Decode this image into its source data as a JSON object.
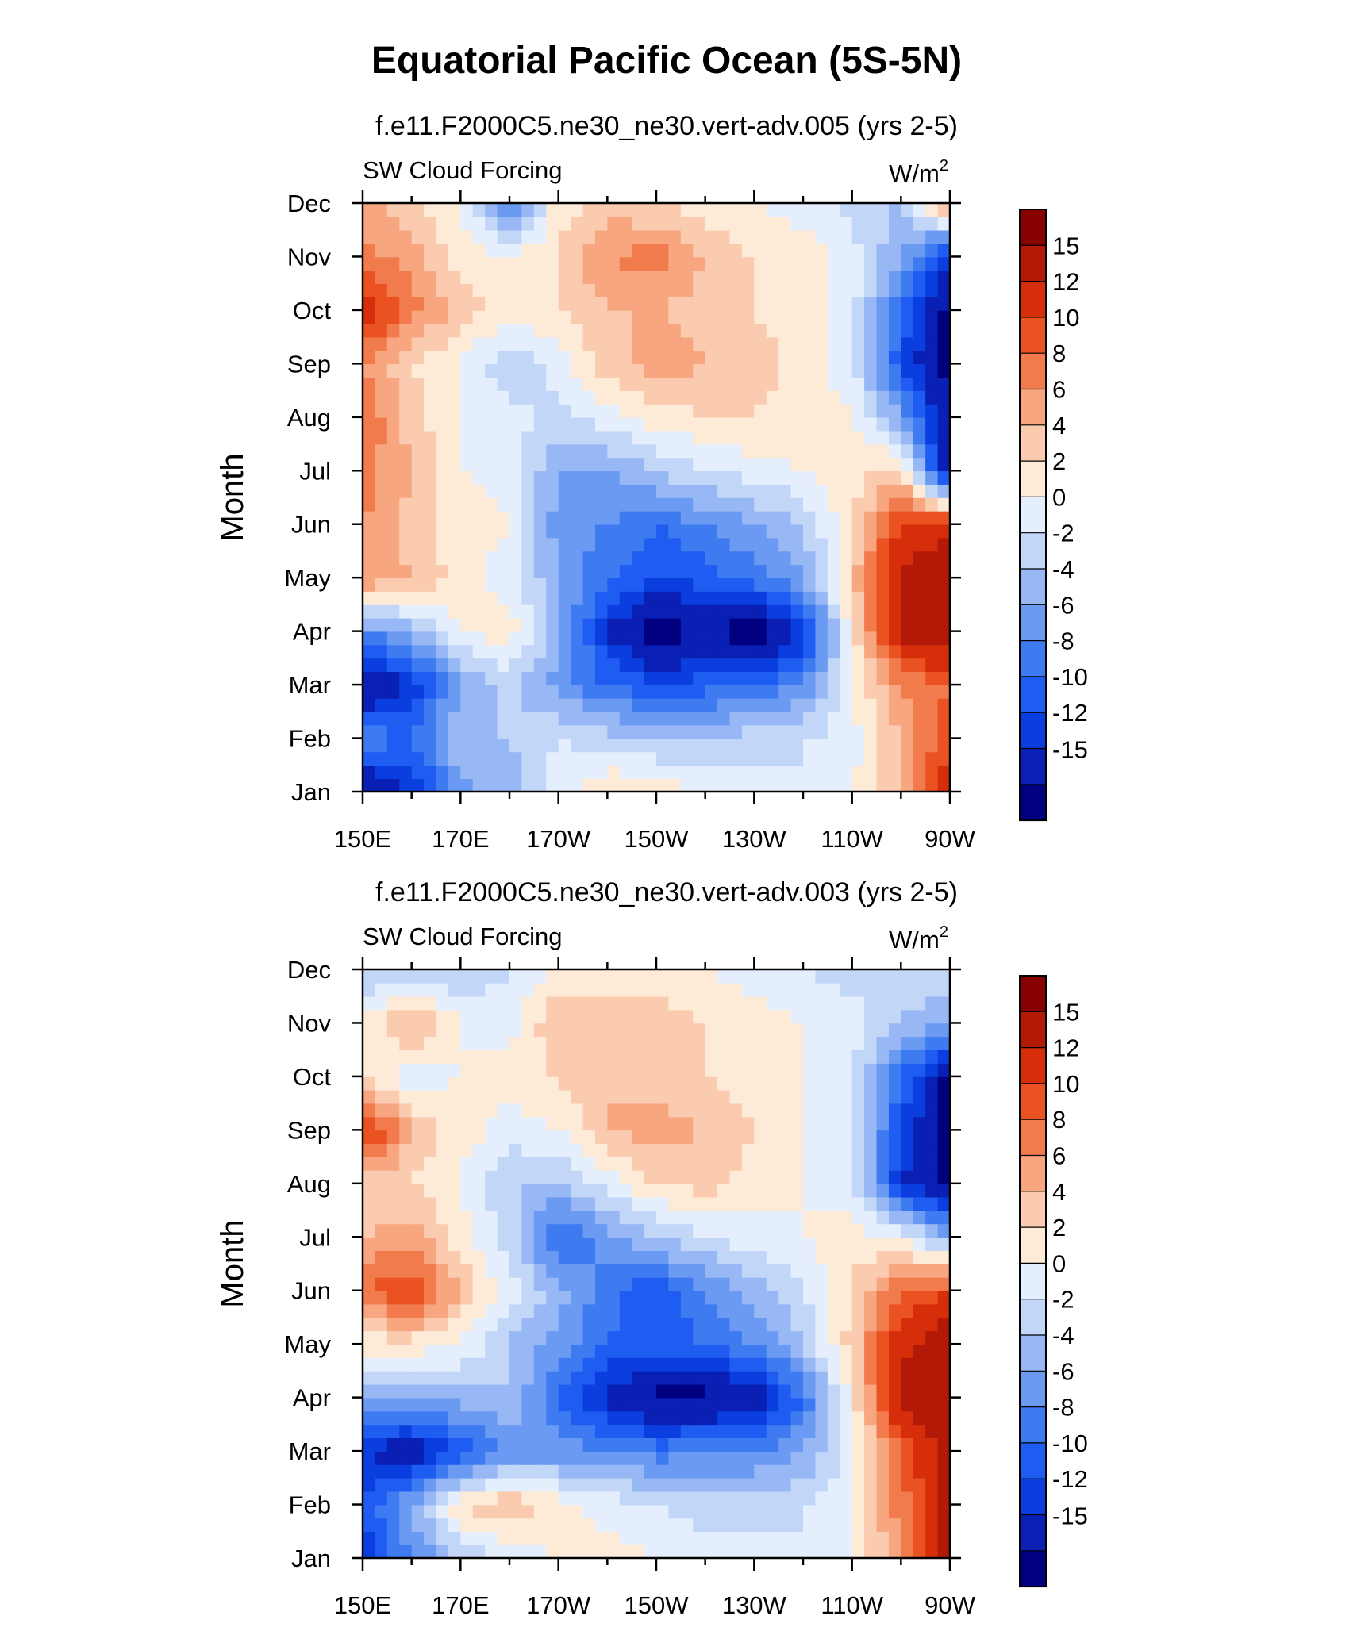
{
  "figure": {
    "title": "Equatorial Pacific Ocean (5S-5N)"
  },
  "palette": [
    "#000080",
    "#0a1fb4",
    "#0b3ede",
    "#1f5cf2",
    "#3f7bf0",
    "#6a9af2",
    "#98b8f5",
    "#c2d6f8",
    "#e4eefc",
    "#fdebd8",
    "#fbcbb0",
    "#f8a67f",
    "#f27b4e",
    "#ea5321",
    "#d62e0b",
    "#b21906",
    "#890000"
  ],
  "chart_data": [
    {
      "type": "heatmap",
      "title": "f.e11.F2000C5.ne30_ne30.vert-adv.005 (yrs 2-5)",
      "left_label": "SW Cloud Forcing",
      "units_base": "W/m",
      "units_exp": "2",
      "ylabel": "Month",
      "xlabel": "",
      "x_ticks": [
        "150E",
        "170E",
        "170W",
        "150W",
        "130W",
        "110W",
        "90W"
      ],
      "y_ticks": [
        "Jan",
        "Feb",
        "Mar",
        "Apr",
        "May",
        "Jun",
        "Jul",
        "Aug",
        "Sep",
        "Oct",
        "Nov",
        "Dec"
      ],
      "colorbar_labels": [
        "15",
        "12",
        "10",
        "8",
        "6",
        "4",
        "2",
        "0",
        "-2",
        "-4",
        "-6",
        "-8",
        "-10",
        "-12",
        "-15"
      ],
      "x_range_lon": [
        150,
        270
      ],
      "y_range_month": [
        1,
        12
      ],
      "x_grid_lon": [
        150,
        160,
        170,
        180,
        190,
        200,
        210,
        220,
        230,
        240,
        250,
        260,
        270
      ],
      "values": [
        [
          -16,
          -12,
          -5,
          -3,
          1,
          4,
          3,
          2,
          1,
          0,
          2,
          6,
          14
        ],
        [
          -6,
          -8,
          -2,
          -2,
          0,
          -1,
          -2,
          -2,
          -1,
          0,
          1,
          6,
          12
        ],
        [
          -16,
          -12,
          -4,
          -1,
          -5,
          -8,
          -10,
          -9,
          -8,
          -6,
          2,
          8,
          10
        ],
        [
          -6,
          -3,
          2,
          3,
          -3,
          -12,
          -17,
          -15,
          -17,
          -12,
          3,
          16,
          18
        ],
        [
          8,
          6,
          3,
          1,
          -4,
          -8,
          -10,
          -9,
          -7,
          -4,
          5,
          16,
          18
        ],
        [
          8,
          5,
          3,
          2,
          -5,
          -6,
          -8,
          -6,
          -4,
          -2,
          4,
          12,
          14
        ],
        [
          9,
          6,
          2,
          1,
          -4,
          -4,
          -2,
          0,
          1,
          2,
          3,
          5,
          -16
        ],
        [
          10,
          5,
          2,
          1,
          -1,
          1,
          3,
          4,
          4,
          3,
          2,
          -4,
          -16
        ],
        [
          8,
          4,
          2,
          -2,
          1,
          5,
          7,
          6,
          5,
          3,
          1,
          -10,
          -16
        ],
        [
          14,
          9,
          5,
          3,
          4,
          6,
          6,
          5,
          4,
          3,
          1,
          -8,
          -16
        ],
        [
          9,
          7,
          3,
          2,
          4,
          8,
          9,
          6,
          4,
          3,
          1,
          -4,
          -12
        ],
        [
          7,
          4,
          2,
          -7,
          3,
          5,
          4,
          3,
          2,
          1,
          -1,
          -2,
          8
        ]
      ]
    },
    {
      "type": "heatmap",
      "title": "f.e11.F2000C5.ne30_ne30.vert-adv.003 (yrs 2-5)",
      "left_label": "SW Cloud Forcing",
      "units_base": "W/m",
      "units_exp": "2",
      "ylabel": "Month",
      "xlabel": "",
      "x_ticks": [
        "150E",
        "170E",
        "170W",
        "150W",
        "130W",
        "110W",
        "90W"
      ],
      "y_ticks": [
        "Jan",
        "Feb",
        "Mar",
        "Apr",
        "May",
        "Jun",
        "Jul",
        "Aug",
        "Sep",
        "Oct",
        "Nov",
        "Dec"
      ],
      "colorbar_labels": [
        "15",
        "12",
        "10",
        "8",
        "6",
        "4",
        "2",
        "0",
        "-2",
        "-4",
        "-6",
        "-8",
        "-10",
        "-12",
        "-15"
      ],
      "x_range_lon": [
        150,
        270
      ],
      "y_range_month": [
        1,
        12
      ],
      "x_grid_lon": [
        150,
        160,
        170,
        180,
        190,
        200,
        210,
        220,
        230,
        240,
        250,
        260,
        270
      ],
      "values": [
        [
          -12,
          -6,
          -2,
          1,
          2,
          3,
          2,
          1,
          1,
          0,
          2,
          8,
          16
        ],
        [
          -10,
          -4,
          4,
          6,
          3,
          1,
          0,
          -1,
          -1,
          0,
          2,
          9,
          16
        ],
        [
          -12,
          -14,
          -10,
          -6,
          -5,
          -6,
          -7,
          -6,
          -6,
          -4,
          1,
          10,
          16
        ],
        [
          -4,
          -4,
          -3,
          -2,
          -8,
          -13,
          -16,
          -16,
          -14,
          -8,
          3,
          16,
          18
        ],
        [
          3,
          3,
          2,
          -2,
          -5,
          -8,
          -9,
          -8,
          -6,
          -2,
          5,
          14,
          18
        ],
        [
          10,
          12,
          6,
          1,
          -3,
          -7,
          -10,
          -6,
          -3,
          0,
          4,
          10,
          12
        ],
        [
          6,
          7,
          3,
          -1,
          -9,
          -5,
          -2,
          0,
          1,
          2,
          3,
          2,
          -4
        ],
        [
          5,
          4,
          2,
          -2,
          -2,
          1,
          4,
          5,
          3,
          2,
          1,
          -12,
          -16
        ],
        [
          14,
          6,
          3,
          1,
          2,
          6,
          7,
          6,
          4,
          2,
          1,
          -10,
          -16
        ],
        [
          3,
          1,
          2,
          3,
          4,
          6,
          5,
          4,
          3,
          2,
          0,
          -8,
          -16
        ],
        [
          2,
          7,
          2,
          1,
          6,
          5,
          5,
          4,
          3,
          2,
          1,
          -2,
          -4
        ],
        [
          -2,
          -1,
          -2,
          0,
          2,
          3,
          3,
          2,
          1,
          0,
          -1,
          -1,
          0
        ]
      ]
    }
  ]
}
